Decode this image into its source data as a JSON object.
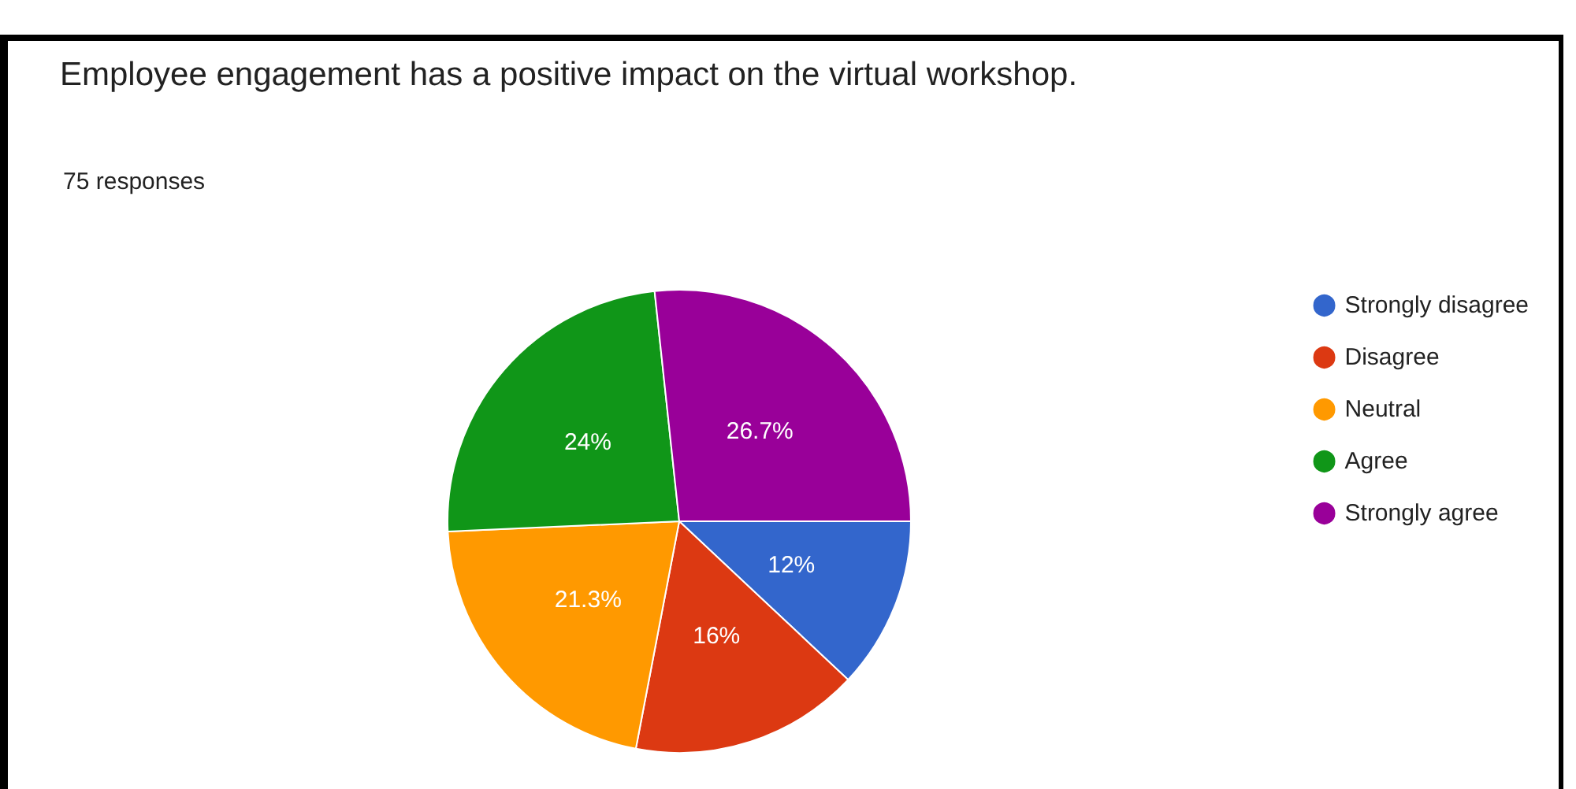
{
  "chart_data": {
    "type": "pie",
    "title": "Employee engagement has a positive impact on the virtual workshop.",
    "subtitle": "75 responses",
    "categories": [
      "Strongly disagree",
      "Disagree",
      "Neutral",
      "Agree",
      "Strongly agree"
    ],
    "values": [
      12,
      16,
      21.3,
      24,
      26.7
    ],
    "colors": [
      "#3366cc",
      "#dc3912",
      "#ff9900",
      "#109618",
      "#990099"
    ],
    "value_labels": [
      "12%",
      "16%",
      "21.3%",
      "24%",
      "26.7%"
    ],
    "legend": "right"
  }
}
